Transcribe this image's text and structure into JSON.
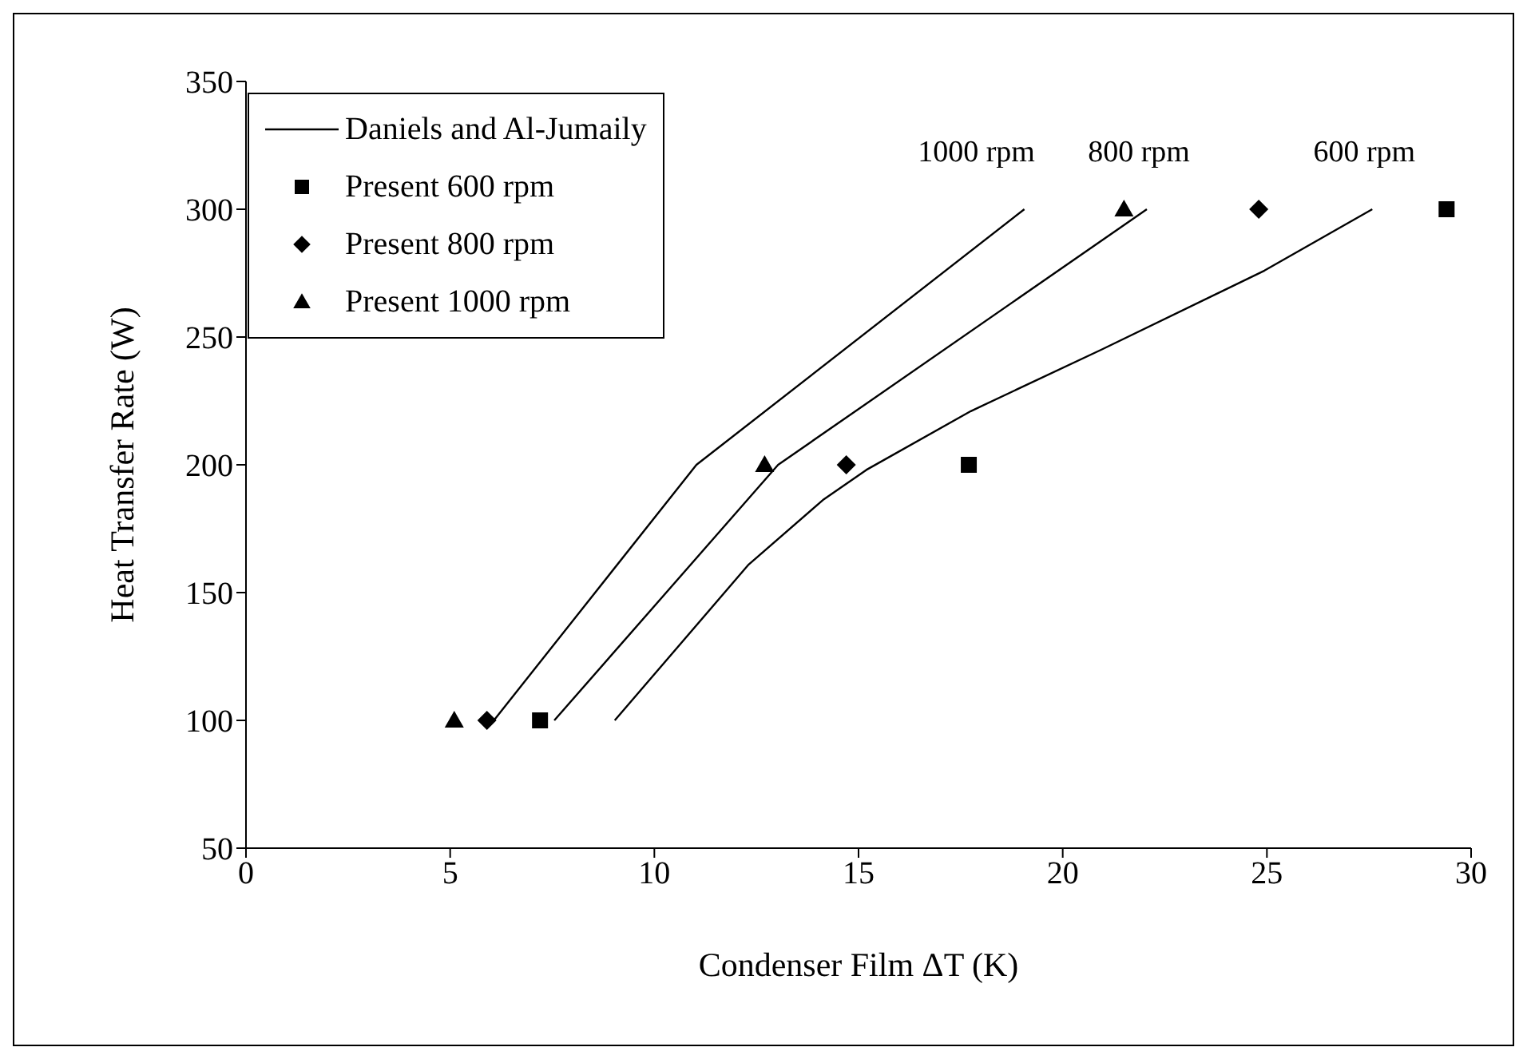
{
  "chart_data": {
    "type": "scatter",
    "xlabel": "Condenser Film ΔT (K)",
    "ylabel": "Heat Transfer Rate (W)",
    "xlim": [
      0,
      30
    ],
    "xticks": [
      0,
      5,
      10,
      15,
      20,
      25,
      30
    ],
    "ylim": [
      50,
      350
    ],
    "yticks": [
      50,
      100,
      150,
      200,
      250,
      300,
      350
    ],
    "grid": false,
    "legend": "top left",
    "series": [
      {
        "name": "Daniels and Al-Jumaily",
        "type": "line",
        "color": "#000000",
        "marker": "none",
        "line_style": "solid",
        "x": [
          6.07,
          11.03,
          19.06
        ],
        "values": [
          100,
          200,
          300
        ]
      },
      {
        "type": "line",
        "color": "#000000",
        "marker": "none",
        "line_style": "solid",
        "x": [
          7.55,
          13.03,
          22.06
        ],
        "values": [
          100,
          200,
          300
        ]
      },
      {
        "type": "line",
        "color": "#000000",
        "marker": "none",
        "line_style": "solid",
        "x": [
          9.03,
          12.31,
          14.15,
          15.19,
          17.75,
          20.94,
          24.94,
          27.58
        ],
        "values": [
          100,
          161,
          186.5,
          198,
          221,
          245,
          276,
          300
        ]
      },
      {
        "name": "Present 600 rpm",
        "color": "#000000",
        "marker": "square",
        "x": [
          7.2,
          17.7,
          29.4
        ],
        "values": [
          100,
          200,
          300
        ]
      },
      {
        "name": "Present 800 rpm",
        "color": "#000000",
        "marker": "diamond",
        "x": [
          5.9,
          14.7,
          24.8
        ],
        "values": [
          100,
          200,
          300
        ]
      },
      {
        "name": "Present 1000 rpm",
        "color": "#000000",
        "marker": "triangle",
        "x": [
          5.1,
          12.7,
          21.5
        ],
        "values": [
          100,
          200,
          300
        ]
      }
    ],
    "annotations": [
      "1000 rpm",
      "800 rpm",
      "600 rpm"
    ]
  }
}
